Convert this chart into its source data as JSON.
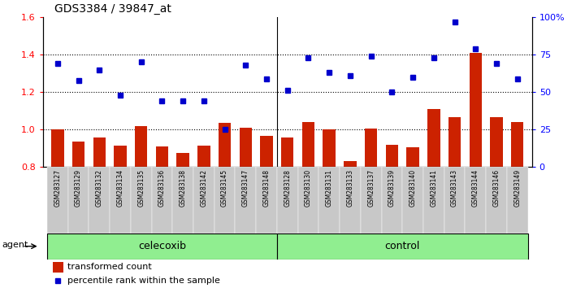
{
  "title": "GDS3384 / 39847_at",
  "samples": [
    "GSM283127",
    "GSM283129",
    "GSM283132",
    "GSM283134",
    "GSM283135",
    "GSM283136",
    "GSM283138",
    "GSM283142",
    "GSM283145",
    "GSM283147",
    "GSM283148",
    "GSM283128",
    "GSM283130",
    "GSM283131",
    "GSM283133",
    "GSM283137",
    "GSM283139",
    "GSM283140",
    "GSM283141",
    "GSM283143",
    "GSM283144",
    "GSM283146",
    "GSM283149"
  ],
  "transformed_count": [
    1.0,
    0.935,
    0.96,
    0.915,
    1.02,
    0.91,
    0.875,
    0.915,
    1.035,
    1.01,
    0.965,
    0.96,
    1.04,
    1.0,
    0.83,
    1.005,
    0.92,
    0.905,
    1.11,
    1.065,
    1.41,
    1.065,
    1.04
  ],
  "percentile_rank_pct": [
    69,
    58,
    65,
    48,
    70,
    44,
    44,
    44,
    25,
    68,
    59,
    51,
    73,
    63,
    61,
    74,
    50,
    60,
    73,
    97,
    79,
    69,
    59
  ],
  "celecoxib_count": 11,
  "bar_color": "#CC2200",
  "dot_color": "#0000CC",
  "group_color": "#90EE90",
  "ylim": [
    0.8,
    1.6
  ],
  "yticks_left": [
    0.8,
    1.0,
    1.2,
    1.4,
    1.6
  ],
  "yticks_right_pct": [
    0,
    25,
    50,
    75,
    100
  ],
  "hlines": [
    1.0,
    1.2,
    1.4
  ],
  "agent_label": "agent",
  "group_labels": [
    "celecoxib",
    "control"
  ],
  "legend_bar_label": "transformed count",
  "legend_dot_label": "percentile rank within the sample"
}
